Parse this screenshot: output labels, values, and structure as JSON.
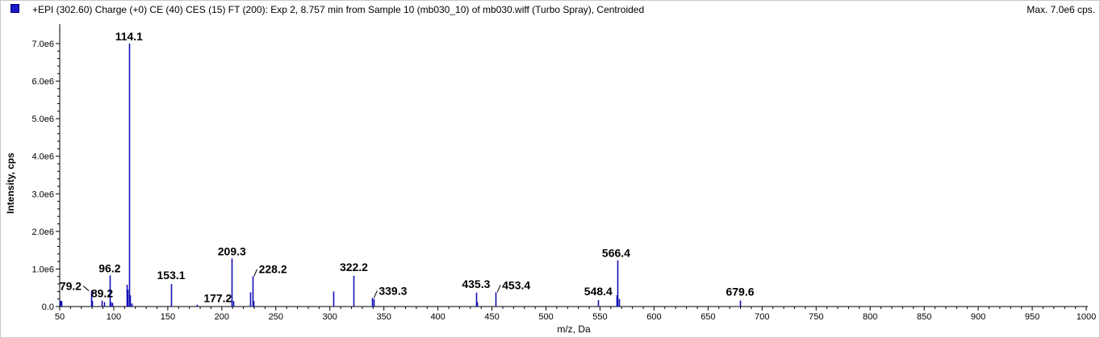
{
  "header": {
    "title": "+EPI (302.60) Charge (+0) CE (40) CES (15) FT (200): Exp 2, 8.757 min from Sample 10 (mb030_10) of mb030.wiff (Turbo Spray), Centroided",
    "max_label": "Max. 7.0e6 cps."
  },
  "colors": {
    "series": "#1010b8",
    "axis": "#000000"
  },
  "chart_data": {
    "type": "bar",
    "xlabel": "m/z, Da",
    "ylabel": "Intensity, cps",
    "xlim": [
      50,
      1000
    ],
    "ylim": [
      0,
      7000000.0
    ],
    "x_ticks": [
      50,
      100,
      150,
      200,
      250,
      300,
      350,
      400,
      450,
      500,
      550,
      600,
      650,
      700,
      750,
      800,
      850,
      900,
      950,
      1000
    ],
    "x_tick_labels": [
      "50",
      "100",
      "150",
      "200",
      "250",
      "300",
      "350",
      "400",
      "450",
      "500",
      "550",
      "600",
      "650",
      "700",
      "750",
      "800",
      "850",
      "900",
      "950",
      "1000"
    ],
    "y_ticks": [
      0,
      1000000.0,
      2000000.0,
      3000000.0,
      4000000.0,
      5000000.0,
      6000000.0,
      7000000.0
    ],
    "y_tick_labels": [
      "0.0",
      "1.0e6",
      "2.0e6",
      "3.0e6",
      "4.0e6",
      "5.0e6",
      "6.0e6",
      "7.0e6"
    ],
    "peaks": [
      {
        "x": 50.5,
        "y": 150000
      },
      {
        "x": 51.5,
        "y": 120000
      },
      {
        "x": 79.2,
        "y": 420000
      },
      {
        "x": 80.2,
        "y": 150000
      },
      {
        "x": 89.2,
        "y": 160000
      },
      {
        "x": 91.1,
        "y": 120000
      },
      {
        "x": 96.2,
        "y": 830000
      },
      {
        "x": 97.2,
        "y": 120000
      },
      {
        "x": 98.2,
        "y": 100000
      },
      {
        "x": 112.1,
        "y": 580000
      },
      {
        "x": 113.1,
        "y": 450000
      },
      {
        "x": 114.1,
        "y": 7000000
      },
      {
        "x": 115.1,
        "y": 300000
      },
      {
        "x": 116.1,
        "y": 80000
      },
      {
        "x": 153.1,
        "y": 600000
      },
      {
        "x": 177.2,
        "y": 50000
      },
      {
        "x": 209.3,
        "y": 1280000
      },
      {
        "x": 210.3,
        "y": 150000
      },
      {
        "x": 226.2,
        "y": 380000
      },
      {
        "x": 228.2,
        "y": 800000
      },
      {
        "x": 229.2,
        "y": 150000
      },
      {
        "x": 303.2,
        "y": 400000
      },
      {
        "x": 322.2,
        "y": 820000
      },
      {
        "x": 339.3,
        "y": 230000
      },
      {
        "x": 340.3,
        "y": 200000
      },
      {
        "x": 435.3,
        "y": 370000
      },
      {
        "x": 436.3,
        "y": 120000
      },
      {
        "x": 453.4,
        "y": 380000
      },
      {
        "x": 548.4,
        "y": 170000
      },
      {
        "x": 565.4,
        "y": 300000
      },
      {
        "x": 566.4,
        "y": 1230000
      },
      {
        "x": 567.4,
        "y": 200000
      },
      {
        "x": 679.6,
        "y": 160000
      }
    ],
    "labels": [
      {
        "text": "114.1",
        "x": 114.1,
        "y": 7000000
      },
      {
        "text": "79.2",
        "x": 79.2,
        "y": 420000
      },
      {
        "text": "89.2",
        "x": 89.2,
        "y": 160000
      },
      {
        "text": "96.2",
        "x": 96.2,
        "y": 830000
      },
      {
        "text": "153.1",
        "x": 153.1,
        "y": 600000
      },
      {
        "text": "177.2",
        "x": 177.2,
        "y": 50000
      },
      {
        "text": "209.3",
        "x": 209.3,
        "y": 1280000
      },
      {
        "text": "228.2",
        "x": 228.2,
        "y": 800000
      },
      {
        "text": "322.2",
        "x": 322.2,
        "y": 820000
      },
      {
        "text": "339.3",
        "x": 339.3,
        "y": 230000
      },
      {
        "text": "435.3",
        "x": 435.3,
        "y": 370000
      },
      {
        "text": "453.4",
        "x": 453.4,
        "y": 380000
      },
      {
        "text": "548.4",
        "x": 548.4,
        "y": 170000
      },
      {
        "text": "566.4",
        "x": 566.4,
        "y": 1230000
      },
      {
        "text": "679.6",
        "x": 679.6,
        "y": 160000
      }
    ],
    "grid": false,
    "legend": "top-left"
  }
}
